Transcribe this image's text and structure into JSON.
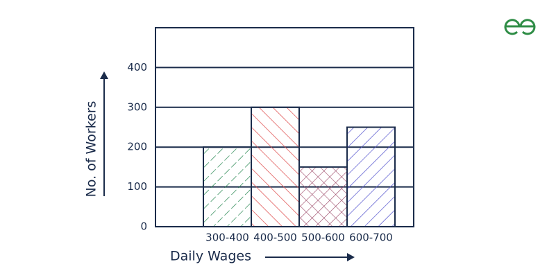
{
  "chart_data": {
    "type": "bar",
    "x_label": "Daily Wages",
    "y_label": "No. of Workers",
    "categories": [
      null,
      "300-400",
      "400-500",
      "500-600",
      "600-700"
    ],
    "values": [
      null,
      200,
      300,
      150,
      250
    ],
    "colors": [
      null,
      "#2e8b57",
      "#e05050",
      "#a0506e",
      "#5a5ad0"
    ],
    "ylim": [
      0,
      500
    ],
    "yticks": [
      0,
      100,
      200,
      300,
      400
    ],
    "grid": true
  }
}
